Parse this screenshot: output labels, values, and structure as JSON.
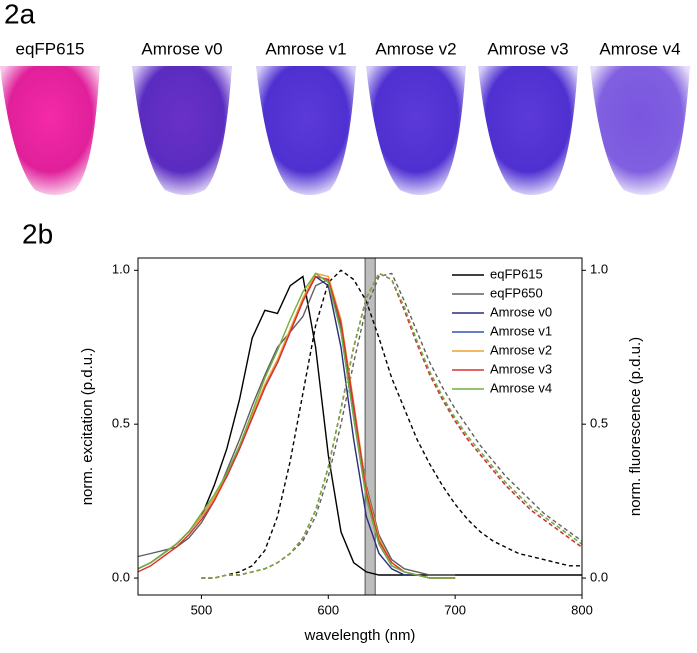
{
  "panel_a": "2a",
  "panel_b": "2b",
  "tubes": [
    {
      "label": "eqFP615"
    },
    {
      "label": "Amrose v0"
    },
    {
      "label": "Amrose v1"
    },
    {
      "label": "Amrose v2"
    },
    {
      "label": "Amrose v3"
    },
    {
      "label": "Amrose v4"
    }
  ],
  "chart_data": {
    "type": "line",
    "x_label": "wavelength (nm)",
    "y_label": "norm. excitation (p.d.u.)",
    "y2_label": "norm. fluorescence (p.d.u.)",
    "xlim": [
      450,
      800
    ],
    "xticks": [
      500,
      600,
      700,
      800
    ],
    "ylim": [
      -0.055,
      1.04
    ],
    "yticks": [
      {
        "value": 0,
        "label": "0.0"
      },
      {
        "value": 0.5,
        "label": "0.5"
      },
      {
        "value": 1,
        "label": "1.0"
      }
    ],
    "y2lim": [
      -0.055,
      1.04
    ],
    "y2ticks": [
      {
        "value": 0,
        "label": "0.0"
      },
      {
        "value": 0.5,
        "label": "0.5"
      },
      {
        "value": 1,
        "label": "1.0"
      }
    ],
    "band": [
      629,
      637
    ],
    "legend": "top-right",
    "x": [
      450,
      460,
      470,
      480,
      490,
      500,
      510,
      520,
      530,
      540,
      550,
      560,
      570,
      580,
      590,
      600,
      610,
      620,
      630,
      640,
      650,
      660,
      670,
      680,
      690,
      700,
      710,
      720,
      730,
      740,
      750,
      760,
      770,
      780,
      790,
      800
    ],
    "series": [
      {
        "name": "eqFP615",
        "color": "#000000",
        "excitation": [
          0.03,
          0.05,
          0.08,
          0.11,
          0.15,
          0.2,
          0.3,
          0.42,
          0.58,
          0.78,
          0.87,
          0.86,
          0.95,
          0.98,
          0.75,
          0.4,
          0.15,
          0.05,
          0.02,
          0.01,
          0.01,
          0.01,
          0.01,
          0.01,
          0.01,
          0.01,
          0.01,
          0.01,
          0.01,
          0.01,
          0.01,
          0.01,
          0.01,
          0.01,
          0.01,
          0.01
        ],
        "emission": [
          null,
          null,
          null,
          null,
          null,
          0,
          0,
          0.01,
          0.02,
          0.04,
          0.09,
          0.2,
          0.38,
          0.6,
          0.82,
          0.96,
          1.0,
          0.97,
          0.9,
          0.78,
          0.65,
          0.55,
          0.45,
          0.37,
          0.3,
          0.24,
          0.19,
          0.15,
          0.12,
          0.1,
          0.08,
          0.07,
          0.06,
          0.05,
          0.04,
          0.04
        ]
      },
      {
        "name": "eqFP650",
        "color": "#606060",
        "excitation": [
          0.07,
          0.08,
          0.09,
          0.1,
          0.13,
          0.18,
          0.25,
          0.35,
          0.45,
          0.56,
          0.66,
          0.75,
          0.8,
          0.85,
          0.95,
          0.97,
          0.82,
          0.55,
          0.3,
          0.14,
          0.06,
          0.03,
          0.02,
          0.01,
          0.01,
          0.01,
          null,
          null,
          null,
          null,
          null,
          null,
          null,
          null,
          null,
          null
        ],
        "emission": [
          null,
          null,
          null,
          null,
          null,
          0,
          0,
          0.01,
          0.01,
          0.02,
          0.03,
          0.05,
          0.08,
          0.12,
          0.2,
          0.33,
          0.5,
          0.7,
          0.88,
          0.98,
          0.99,
          0.9,
          0.8,
          0.7,
          0.62,
          0.55,
          0.49,
          0.43,
          0.38,
          0.33,
          0.29,
          0.25,
          0.21,
          0.18,
          0.15,
          0.12
        ]
      },
      {
        "name": "Amrose v0",
        "color": "#2b2f7a",
        "excitation": [
          0.03,
          0.05,
          0.08,
          0.11,
          0.15,
          0.2,
          0.26,
          0.33,
          0.42,
          0.52,
          0.62,
          0.7,
          0.8,
          0.9,
          0.98,
          0.95,
          0.75,
          0.45,
          0.2,
          0.08,
          0.03,
          0.01,
          0.01,
          0,
          0,
          0,
          null,
          null,
          null,
          null,
          null,
          null,
          null,
          null,
          null,
          null
        ],
        "emission": [
          null,
          null,
          null,
          null,
          null,
          0,
          0,
          0.01,
          0.01,
          0.02,
          0.03,
          0.05,
          0.08,
          0.13,
          0.22,
          0.36,
          0.55,
          0.75,
          0.91,
          0.99,
          0.97,
          0.87,
          0.76,
          0.66,
          0.58,
          0.51,
          0.45,
          0.4,
          0.35,
          0.3,
          0.26,
          0.22,
          0.19,
          0.16,
          0.13,
          0.1
        ]
      },
      {
        "name": "Amrose v1",
        "color": "#3452b8",
        "excitation": [
          0.03,
          0.05,
          0.08,
          0.11,
          0.15,
          0.2,
          0.26,
          0.33,
          0.42,
          0.52,
          0.62,
          0.7,
          0.8,
          0.9,
          0.98,
          0.97,
          0.8,
          0.52,
          0.26,
          0.11,
          0.04,
          0.02,
          0.01,
          0,
          0,
          0,
          null,
          null,
          null,
          null,
          null,
          null,
          null,
          null,
          null,
          null
        ],
        "emission": [
          null,
          null,
          null,
          null,
          null,
          0,
          0,
          0.01,
          0.01,
          0.02,
          0.03,
          0.05,
          0.08,
          0.13,
          0.22,
          0.36,
          0.55,
          0.75,
          0.91,
          0.99,
          0.97,
          0.87,
          0.77,
          0.67,
          0.59,
          0.52,
          0.46,
          0.41,
          0.36,
          0.31,
          0.27,
          0.23,
          0.2,
          0.17,
          0.14,
          0.11
        ]
      },
      {
        "name": "Amrose v2",
        "color": "#f0a030",
        "excitation": [
          0.03,
          0.05,
          0.08,
          0.11,
          0.15,
          0.2,
          0.26,
          0.34,
          0.43,
          0.53,
          0.63,
          0.71,
          0.81,
          0.91,
          0.99,
          0.98,
          0.84,
          0.57,
          0.29,
          0.13,
          0.05,
          0.02,
          0.01,
          0,
          0,
          0,
          null,
          null,
          null,
          null,
          null,
          null,
          null,
          null,
          null,
          null
        ],
        "emission": [
          null,
          null,
          null,
          null,
          null,
          0,
          0,
          0.01,
          0.01,
          0.02,
          0.03,
          0.05,
          0.08,
          0.13,
          0.22,
          0.36,
          0.55,
          0.75,
          0.91,
          0.99,
          0.97,
          0.88,
          0.77,
          0.67,
          0.59,
          0.52,
          0.46,
          0.41,
          0.36,
          0.31,
          0.27,
          0.23,
          0.2,
          0.17,
          0.14,
          0.11
        ]
      },
      {
        "name": "Amrose v3",
        "color": "#e03030",
        "excitation": [
          0.02,
          0.04,
          0.07,
          0.1,
          0.14,
          0.19,
          0.25,
          0.33,
          0.42,
          0.52,
          0.62,
          0.7,
          0.8,
          0.9,
          0.98,
          0.97,
          0.83,
          0.56,
          0.28,
          0.12,
          0.05,
          0.02,
          0.01,
          0,
          0,
          0,
          null,
          null,
          null,
          null,
          null,
          null,
          null,
          null,
          null,
          null
        ],
        "emission": [
          null,
          null,
          null,
          null,
          null,
          0,
          0,
          0.01,
          0.01,
          0.02,
          0.03,
          0.05,
          0.08,
          0.13,
          0.22,
          0.36,
          0.55,
          0.75,
          0.91,
          0.99,
          0.97,
          0.87,
          0.76,
          0.66,
          0.58,
          0.51,
          0.45,
          0.4,
          0.35,
          0.3,
          0.26,
          0.22,
          0.19,
          0.16,
          0.13,
          0.1
        ]
      },
      {
        "name": "Amrose v4",
        "color": "#70b040",
        "excitation": [
          0.03,
          0.05,
          0.08,
          0.11,
          0.15,
          0.21,
          0.27,
          0.34,
          0.43,
          0.54,
          0.65,
          0.74,
          0.84,
          0.93,
          0.99,
          0.96,
          0.8,
          0.52,
          0.26,
          0.11,
          0.04,
          0.02,
          0.01,
          0,
          0,
          0,
          null,
          null,
          null,
          null,
          null,
          null,
          null,
          null,
          null,
          null
        ],
        "emission": [
          null,
          null,
          null,
          null,
          null,
          0,
          0,
          0.01,
          0.01,
          0.02,
          0.03,
          0.05,
          0.08,
          0.13,
          0.22,
          0.36,
          0.55,
          0.75,
          0.91,
          0.99,
          0.97,
          0.88,
          0.77,
          0.67,
          0.59,
          0.52,
          0.46,
          0.41,
          0.36,
          0.31,
          0.27,
          0.23,
          0.2,
          0.17,
          0.14,
          0.11
        ]
      }
    ]
  }
}
